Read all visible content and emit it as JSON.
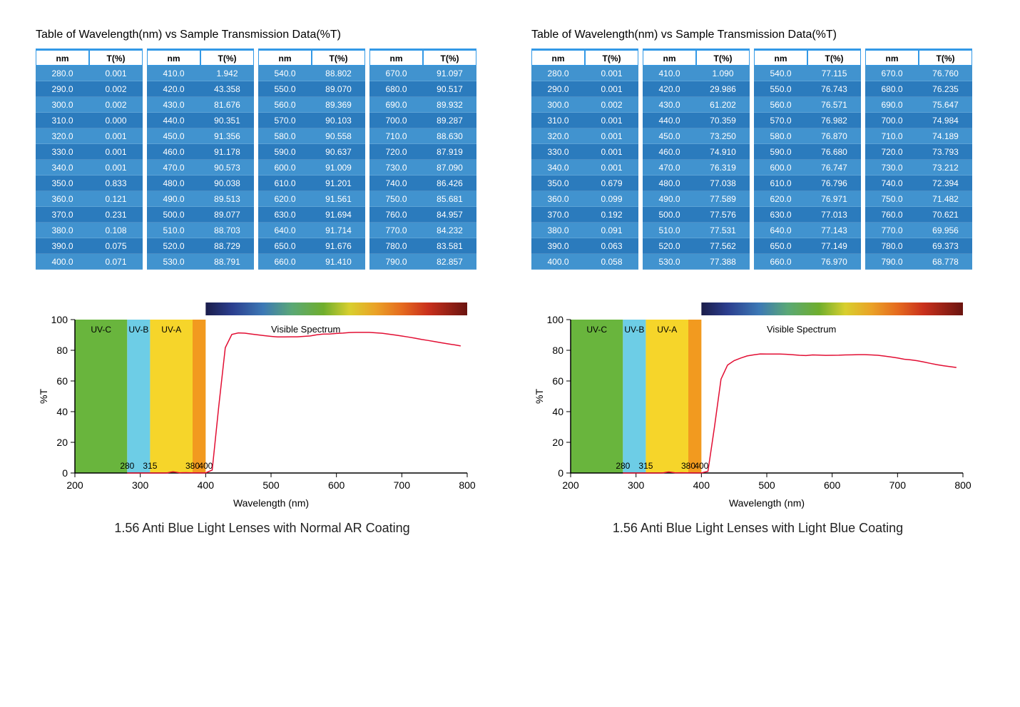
{
  "common": {
    "table_title": "Table of Wavelength(nm) vs Sample Transmission Data(%T)",
    "headers": [
      "nm",
      "T(%)",
      "nm",
      "T(%)",
      "nm",
      "T(%)",
      "nm",
      "T(%)"
    ],
    "chart": {
      "type": "line",
      "xlim": [
        200,
        800
      ],
      "ylim": [
        0,
        100
      ],
      "xticks": [
        200,
        300,
        400,
        500,
        600,
        700,
        800
      ],
      "yticks": [
        0,
        20,
        40,
        60,
        80,
        100
      ],
      "xlabel": "Wavelength (nm)",
      "ylabel": "%T",
      "axis_color": "#000000",
      "line_color": "#e20e33",
      "line_width": 1.5,
      "tick_fontsize": 14,
      "label_fontsize": 14,
      "band_labels": {
        "uvc": "UV-C",
        "uvb": "UV-B",
        "uva": "UV-A",
        "vis": "Visible Spectrum"
      },
      "band_boundary_labels": [
        "280",
        "315",
        "380",
        "400"
      ],
      "uv_bands": [
        {
          "name": "UV-C",
          "from": 200,
          "to": 280,
          "color": "#69b53d"
        },
        {
          "name": "UV-B",
          "from": 280,
          "to": 315,
          "color": "#6dcde6"
        },
        {
          "name": "UV-A",
          "from": 315,
          "to": 380,
          "color": "#f6d52a"
        },
        {
          "name": "edge",
          "from": 380,
          "to": 400,
          "color": "#f29a1f"
        }
      ],
      "spectrum_gradient": [
        {
          "stop": 0.0,
          "color": "#1b1d4a"
        },
        {
          "stop": 0.1,
          "color": "#2b3e8e"
        },
        {
          "stop": 0.22,
          "color": "#3c78b5"
        },
        {
          "stop": 0.33,
          "color": "#5aa876"
        },
        {
          "stop": 0.45,
          "color": "#6fae2d"
        },
        {
          "stop": 0.55,
          "color": "#d8cf2e"
        },
        {
          "stop": 0.65,
          "color": "#eaa227"
        },
        {
          "stop": 0.75,
          "color": "#e56b1f"
        },
        {
          "stop": 0.85,
          "color": "#c9301c"
        },
        {
          "stop": 1.0,
          "color": "#6a1410"
        }
      ]
    }
  },
  "panels": [
    {
      "caption": "1.56 Anti Blue Light Lenses with Normal AR Coating",
      "rows": [
        [
          "280.0",
          "0.001",
          "410.0",
          "1.942",
          "540.0",
          "88.802",
          "670.0",
          "91.097"
        ],
        [
          "290.0",
          "0.002",
          "420.0",
          "43.358",
          "550.0",
          "89.070",
          "680.0",
          "90.517"
        ],
        [
          "300.0",
          "0.002",
          "430.0",
          "81.676",
          "560.0",
          "89.369",
          "690.0",
          "89.932"
        ],
        [
          "310.0",
          "0.000",
          "440.0",
          "90.351",
          "570.0",
          "90.103",
          "700.0",
          "89.287"
        ],
        [
          "320.0",
          "0.001",
          "450.0",
          "91.356",
          "580.0",
          "90.558",
          "710.0",
          "88.630"
        ],
        [
          "330.0",
          "0.001",
          "460.0",
          "91.178",
          "590.0",
          "90.637",
          "720.0",
          "87.919"
        ],
        [
          "340.0",
          "0.001",
          "470.0",
          "90.573",
          "600.0",
          "91.009",
          "730.0",
          "87.090"
        ],
        [
          "350.0",
          "0.833",
          "480.0",
          "90.038",
          "610.0",
          "91.201",
          "740.0",
          "86.426"
        ],
        [
          "360.0",
          "0.121",
          "490.0",
          "89.513",
          "620.0",
          "91.561",
          "750.0",
          "85.681"
        ],
        [
          "370.0",
          "0.231",
          "500.0",
          "89.077",
          "630.0",
          "91.694",
          "760.0",
          "84.957"
        ],
        [
          "380.0",
          "0.108",
          "510.0",
          "88.703",
          "640.0",
          "91.714",
          "770.0",
          "84.232"
        ],
        [
          "390.0",
          "0.075",
          "520.0",
          "88.729",
          "650.0",
          "91.676",
          "780.0",
          "83.581"
        ],
        [
          "400.0",
          "0.071",
          "530.0",
          "88.791",
          "660.0",
          "91.410",
          "790.0",
          "82.857"
        ]
      ],
      "line": [
        [
          280,
          0.001
        ],
        [
          290,
          0.002
        ],
        [
          300,
          0.002
        ],
        [
          310,
          0.0
        ],
        [
          320,
          0.001
        ],
        [
          330,
          0.001
        ],
        [
          340,
          0.001
        ],
        [
          350,
          0.833
        ],
        [
          360,
          0.121
        ],
        [
          370,
          0.231
        ],
        [
          380,
          0.108
        ],
        [
          390,
          0.075
        ],
        [
          400,
          0.071
        ],
        [
          410,
          1.942
        ],
        [
          420,
          43.358
        ],
        [
          430,
          81.676
        ],
        [
          440,
          90.351
        ],
        [
          450,
          91.356
        ],
        [
          460,
          91.178
        ],
        [
          470,
          90.573
        ],
        [
          480,
          90.038
        ],
        [
          490,
          89.513
        ],
        [
          500,
          89.077
        ],
        [
          510,
          88.703
        ],
        [
          520,
          88.729
        ],
        [
          530,
          88.791
        ],
        [
          540,
          88.802
        ],
        [
          550,
          89.07
        ],
        [
          560,
          89.369
        ],
        [
          570,
          90.103
        ],
        [
          580,
          90.558
        ],
        [
          590,
          90.637
        ],
        [
          600,
          91.009
        ],
        [
          610,
          91.201
        ],
        [
          620,
          91.561
        ],
        [
          630,
          91.694
        ],
        [
          640,
          91.714
        ],
        [
          650,
          91.676
        ],
        [
          660,
          91.41
        ],
        [
          670,
          91.097
        ],
        [
          680,
          90.517
        ],
        [
          690,
          89.932
        ],
        [
          700,
          89.287
        ],
        [
          710,
          88.63
        ],
        [
          720,
          87.919
        ],
        [
          730,
          87.09
        ],
        [
          740,
          86.426
        ],
        [
          750,
          85.681
        ],
        [
          760,
          84.957
        ],
        [
          770,
          84.232
        ],
        [
          780,
          83.581
        ],
        [
          790,
          82.857
        ]
      ]
    },
    {
      "caption": "1.56 Anti Blue Light Lenses with Light Blue Coating",
      "rows": [
        [
          "280.0",
          "0.001",
          "410.0",
          "1.090",
          "540.0",
          "77.115",
          "670.0",
          "76.760"
        ],
        [
          "290.0",
          "0.001",
          "420.0",
          "29.986",
          "550.0",
          "76.743",
          "680.0",
          "76.235"
        ],
        [
          "300.0",
          "0.002",
          "430.0",
          "61.202",
          "560.0",
          "76.571",
          "690.0",
          "75.647"
        ],
        [
          "310.0",
          "0.001",
          "440.0",
          "70.359",
          "570.0",
          "76.982",
          "700.0",
          "74.984"
        ],
        [
          "320.0",
          "0.001",
          "450.0",
          "73.250",
          "580.0",
          "76.870",
          "710.0",
          "74.189"
        ],
        [
          "330.0",
          "0.001",
          "460.0",
          "74.910",
          "590.0",
          "76.680",
          "720.0",
          "73.793"
        ],
        [
          "340.0",
          "0.001",
          "470.0",
          "76.319",
          "600.0",
          "76.747",
          "730.0",
          "73.212"
        ],
        [
          "350.0",
          "0.679",
          "480.0",
          "77.038",
          "610.0",
          "76.796",
          "740.0",
          "72.394"
        ],
        [
          "360.0",
          "0.099",
          "490.0",
          "77.589",
          "620.0",
          "76.971",
          "750.0",
          "71.482"
        ],
        [
          "370.0",
          "0.192",
          "500.0",
          "77.576",
          "630.0",
          "77.013",
          "760.0",
          "70.621"
        ],
        [
          "380.0",
          "0.091",
          "510.0",
          "77.531",
          "640.0",
          "77.143",
          "770.0",
          "69.956"
        ],
        [
          "390.0",
          "0.063",
          "520.0",
          "77.562",
          "650.0",
          "77.149",
          "780.0",
          "69.373"
        ],
        [
          "400.0",
          "0.058",
          "530.0",
          "77.388",
          "660.0",
          "76.970",
          "790.0",
          "68.778"
        ]
      ],
      "line": [
        [
          280,
          0.001
        ],
        [
          290,
          0.001
        ],
        [
          300,
          0.002
        ],
        [
          310,
          0.001
        ],
        [
          320,
          0.001
        ],
        [
          330,
          0.001
        ],
        [
          340,
          0.001
        ],
        [
          350,
          0.679
        ],
        [
          360,
          0.099
        ],
        [
          370,
          0.192
        ],
        [
          380,
          0.091
        ],
        [
          390,
          0.063
        ],
        [
          400,
          0.058
        ],
        [
          410,
          1.09
        ],
        [
          420,
          29.986
        ],
        [
          430,
          61.202
        ],
        [
          440,
          70.359
        ],
        [
          450,
          73.25
        ],
        [
          460,
          74.91
        ],
        [
          470,
          76.319
        ],
        [
          480,
          77.038
        ],
        [
          490,
          77.589
        ],
        [
          500,
          77.576
        ],
        [
          510,
          77.531
        ],
        [
          520,
          77.562
        ],
        [
          530,
          77.388
        ],
        [
          540,
          77.115
        ],
        [
          550,
          76.743
        ],
        [
          560,
          76.571
        ],
        [
          570,
          76.982
        ],
        [
          580,
          76.87
        ],
        [
          590,
          76.68
        ],
        [
          600,
          76.747
        ],
        [
          610,
          76.796
        ],
        [
          620,
          76.971
        ],
        [
          630,
          77.013
        ],
        [
          640,
          77.143
        ],
        [
          650,
          77.149
        ],
        [
          660,
          76.97
        ],
        [
          670,
          76.76
        ],
        [
          680,
          76.235
        ],
        [
          690,
          75.647
        ],
        [
          700,
          74.984
        ],
        [
          710,
          74.189
        ],
        [
          720,
          73.793
        ],
        [
          730,
          73.212
        ],
        [
          740,
          72.394
        ],
        [
          750,
          71.482
        ],
        [
          760,
          70.621
        ],
        [
          770,
          69.956
        ],
        [
          780,
          69.373
        ],
        [
          790,
          68.778
        ]
      ]
    }
  ]
}
